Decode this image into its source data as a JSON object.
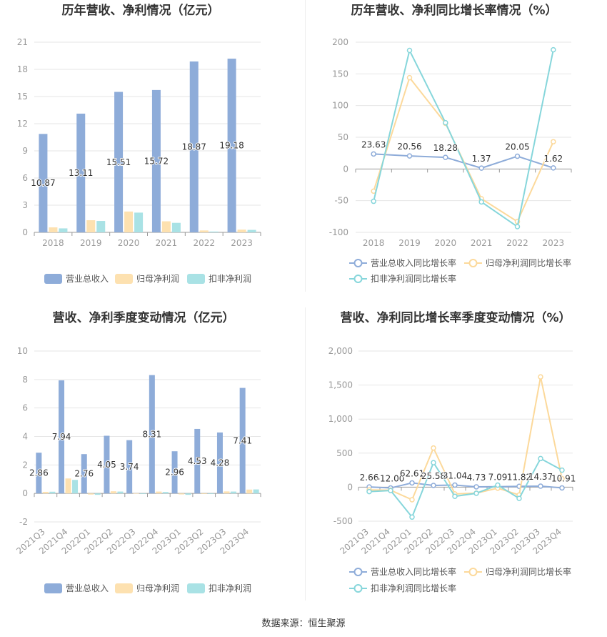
{
  "footer": {
    "source": "数据来源：恒生聚源"
  },
  "chart_data": [
    {
      "type": "bar",
      "title": "历年营收、净利情况（亿元）",
      "categories": [
        "2018",
        "2019",
        "2020",
        "2021",
        "2022",
        "2023"
      ],
      "ylim": [
        0,
        21
      ],
      "yticks": [
        0,
        3,
        6,
        9,
        12,
        15,
        18,
        21
      ],
      "grid": true,
      "legend_position": "bottom",
      "series": [
        {
          "name": "营业总收入",
          "color": "#8eacd9",
          "values": [
            10.87,
            13.11,
            15.51,
            15.72,
            18.87,
            19.18
          ],
          "labels": [
            "10.87",
            "13.11",
            "15.51",
            "15.72",
            "18.87",
            "19.18"
          ]
        },
        {
          "name": "归母净利润",
          "color": "#fde1b0",
          "values": [
            0.55,
            1.34,
            2.3,
            1.22,
            0.21,
            0.3
          ]
        },
        {
          "name": "扣非净利润",
          "color": "#a9e2e5",
          "values": [
            0.44,
            1.26,
            2.18,
            1.05,
            0.09,
            0.27
          ]
        }
      ]
    },
    {
      "type": "line",
      "title": "历年营收、净利同比增长率情况（%）",
      "categories": [
        "2018",
        "2019",
        "2020",
        "2021",
        "2022",
        "2023"
      ],
      "ylim": [
        -100,
        200
      ],
      "yticks": [
        -100,
        -50,
        0,
        50,
        100,
        150,
        200
      ],
      "grid": true,
      "legend_position": "bottom",
      "series": [
        {
          "name": "营业总收入同比增长率",
          "color": "#8eacd9",
          "values": [
            23.63,
            20.56,
            18.28,
            1.37,
            20.05,
            1.62
          ],
          "labels": [
            "23.63",
            "20.56",
            "18.28",
            "1.37",
            "20.05",
            "1.62"
          ]
        },
        {
          "name": "归母净利润同比增长率",
          "color": "#fcd99b",
          "values": [
            -35,
            144,
            72,
            -47,
            -83,
            43
          ]
        },
        {
          "name": "扣非净利润同比增长率",
          "color": "#86d6db",
          "values": [
            -51,
            187,
            73,
            -52,
            -91,
            188
          ]
        }
      ]
    },
    {
      "type": "bar",
      "title": "营收、净利季度变动情况（亿元）",
      "categories": [
        "2021Q3",
        "2021Q4",
        "2022Q1",
        "2022Q2",
        "2022Q3",
        "2022Q4",
        "2023Q1",
        "2023Q2",
        "2023Q3",
        "2023Q4"
      ],
      "ylim": [
        -2,
        10
      ],
      "yticks": [
        -2,
        0,
        2,
        4,
        6,
        8,
        10
      ],
      "grid": true,
      "legend_position": "bottom",
      "series": [
        {
          "name": "营业总收入",
          "color": "#8eacd9",
          "values": [
            2.86,
            7.94,
            2.76,
            4.05,
            3.74,
            8.31,
            2.96,
            4.53,
            4.28,
            7.41
          ],
          "labels": [
            "2.86",
            "7.94",
            "2.76",
            "4.05",
            "3.74",
            "8.31",
            "2.96",
            "4.53",
            "4.28",
            "7.41"
          ]
        },
        {
          "name": "归母净利润",
          "color": "#fde1b0",
          "values": [
            0.11,
            1.05,
            -0.08,
            0.15,
            0.01,
            0.13,
            -0.07,
            -0.04,
            0.14,
            0.27
          ]
        },
        {
          "name": "扣非净利润",
          "color": "#a9e2e5",
          "values": [
            0.12,
            0.95,
            -0.1,
            0.13,
            -0.04,
            0.1,
            -0.1,
            -0.04,
            0.13,
            0.28
          ]
        }
      ]
    },
    {
      "type": "line",
      "title": "营收、净利同比增长率季度变动情况（%）",
      "categories": [
        "2021Q3",
        "2021Q4",
        "2022Q1",
        "2022Q2",
        "2022Q3",
        "2022Q4",
        "2023Q1",
        "2023Q2",
        "2023Q3",
        "2023Q4"
      ],
      "ylim": [
        -500,
        2000
      ],
      "yticks": [
        -500,
        0,
        500,
        1000,
        1500,
        2000
      ],
      "ytick_labels": [
        "-500",
        "0",
        "500",
        "1,000",
        "1,500",
        "2,000"
      ],
      "grid": true,
      "legend_position": "bottom",
      "series": [
        {
          "name": "营业总收入同比增长率",
          "color": "#8eacd9",
          "values": [
            2.66,
            -12.0,
            62.61,
            25.58,
            31.04,
            4.73,
            7.09,
            11.82,
            14.37,
            -10.91
          ],
          "labels": [
            "2.66",
            "-12.00",
            "62.61",
            "25.58",
            "31.04",
            "4.73",
            "7.09",
            "11.82",
            "14.37",
            "-10.91"
          ]
        },
        {
          "name": "归母净利润同比增长率",
          "color": "#fcd99b",
          "values": [
            -40,
            -45,
            -185,
            575,
            -100,
            -88,
            -15,
            -115,
            1620,
            125
          ]
        },
        {
          "name": "扣非净利润同比增长率",
          "color": "#86d6db",
          "values": [
            -65,
            -50,
            -440,
            360,
            -135,
            -90,
            30,
            -165,
            420,
            250
          ]
        }
      ]
    }
  ]
}
